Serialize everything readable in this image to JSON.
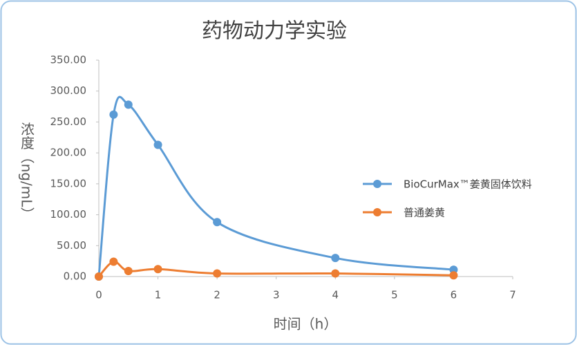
{
  "chart_data": {
    "type": "line",
    "title": "药物动力学实验",
    "x_label": "时间（h）",
    "y_label": "浓度（ng/mL）",
    "x": [
      0,
      0.25,
      0.5,
      1,
      2,
      4,
      6
    ],
    "series": [
      {
        "name": "BioCurMax™姜黄固体饮料",
        "color": "#5b9bd5",
        "values": [
          0,
          262,
          278,
          213,
          88,
          30,
          11
        ]
      },
      {
        "name": "普通姜黄",
        "color": "#ed7d31",
        "values": [
          0,
          24,
          9,
          12,
          5,
          5,
          2
        ]
      }
    ],
    "xlim": [
      0,
      7
    ],
    "xticks": [
      0,
      1,
      2,
      3,
      4,
      5,
      6,
      7
    ],
    "ylim": [
      0,
      350
    ],
    "yticks": [
      {
        "value": 0,
        "label": "0.00"
      },
      {
        "value": 50,
        "label": "50.00"
      },
      {
        "value": 100,
        "label": "100.00"
      },
      {
        "value": 150,
        "label": "150.00"
      },
      {
        "value": 200,
        "label": "200.00"
      },
      {
        "value": 250,
        "label": "250.00"
      },
      {
        "value": 300,
        "label": "300.00"
      },
      {
        "value": 350,
        "label": "350.00"
      }
    ],
    "grid": false,
    "legend": "right"
  }
}
